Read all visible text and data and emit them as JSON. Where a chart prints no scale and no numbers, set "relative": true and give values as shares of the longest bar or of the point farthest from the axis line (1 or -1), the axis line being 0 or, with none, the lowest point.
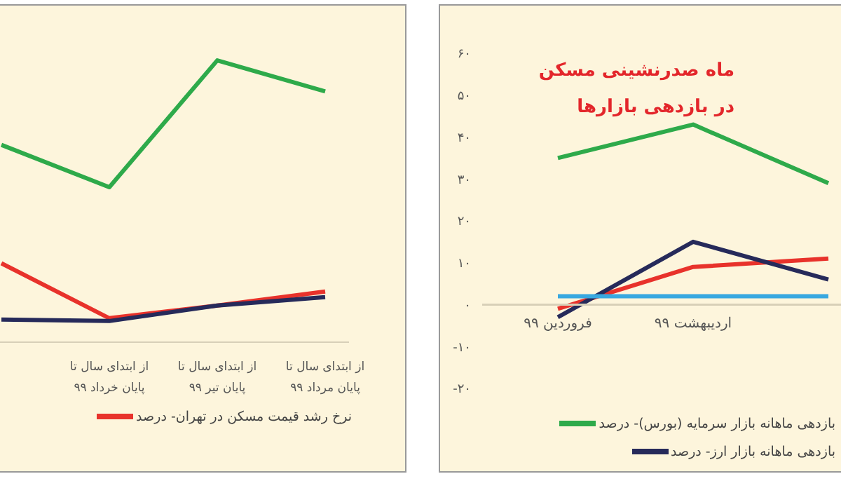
{
  "chart_data": [
    {
      "type": "line",
      "relative": true,
      "legend": "bottom",
      "categories": [
        null,
        "از ابتدای سال تا پایان خرداد ۹۹",
        "از ابتدای سال تا پایان تیر ۹۹",
        "از ابتدای سال تا پایان مرداد ۹۹"
      ],
      "series": [
        {
          "color": "#2eaa4a",
          "values": [
            0.7,
            0.55,
            1,
            0.89
          ]
        },
        {
          "name": "نرخ رشد قیمت مسکن در تهران- درصد",
          "color": "#e8322b",
          "values": [
            0.28,
            0.085,
            0.13,
            0.18
          ]
        },
        {
          "color": "#262a5a",
          "values": [
            0.08,
            0.075,
            0.13,
            0.16
          ]
        }
      ]
    },
    {
      "type": "line",
      "title": "ماه صدرنشینی مسکن\nدر بازدهی بازارها",
      "legend": "bottom",
      "categories": [
        "فروردین ۹۹",
        "اردیبهشت ۹۹",
        null
      ],
      "ylim": [
        -20,
        60
      ],
      "yticks": [
        {
          "value": -20,
          "label": "-۲۰"
        },
        {
          "value": -10,
          "label": "-۱۰"
        },
        {
          "value": 0,
          "label": "۰"
        },
        {
          "value": 10,
          "label": "۱۰"
        },
        {
          "value": 20,
          "label": "۲۰"
        },
        {
          "value": 30,
          "label": "۳۰"
        },
        {
          "value": 40,
          "label": "۴۰"
        },
        {
          "value": 50,
          "label": "۵۰"
        },
        {
          "value": 60,
          "label": "۶۰"
        }
      ],
      "series": [
        {
          "name": "بازدهی ماهانه بازار سرمایه (بورس)- درصد",
          "color": "#2eaa4a",
          "values": [
            35,
            43,
            29
          ]
        },
        {
          "color": "#e8322b",
          "values": [
            -1,
            9,
            11
          ]
        },
        {
          "name": "بازدهی ماهانه بازار ارز- درصد",
          "color": "#262a5a",
          "values": [
            -3,
            15,
            6
          ]
        },
        {
          "color": "#38a8e0",
          "values": [
            2,
            2,
            2
          ]
        }
      ]
    }
  ]
}
